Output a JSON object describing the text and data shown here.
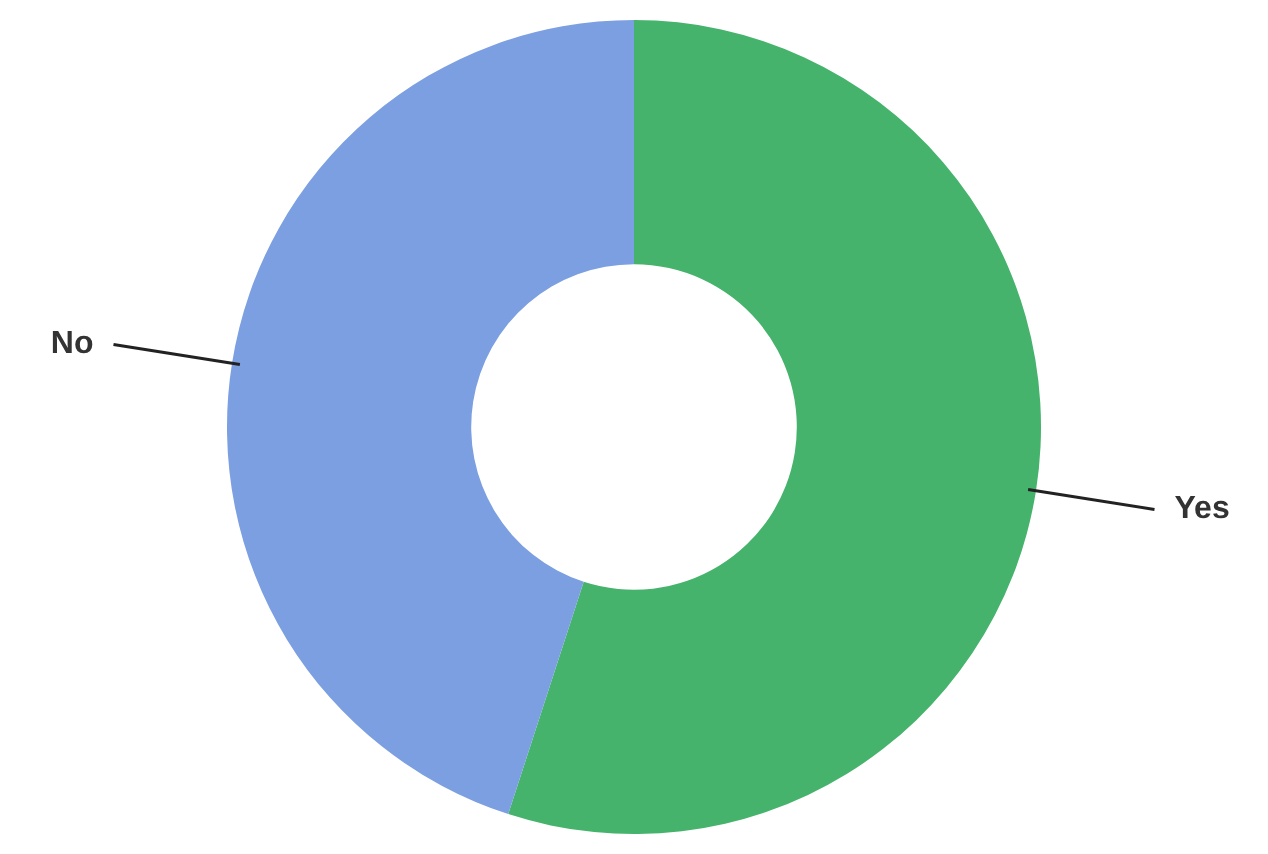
{
  "chart_data": {
    "type": "donut",
    "categories": [
      "Yes",
      "No"
    ],
    "values": [
      55,
      45
    ],
    "colors": [
      "#45b36b",
      "#7b9fe0"
    ],
    "legend": false
  }
}
